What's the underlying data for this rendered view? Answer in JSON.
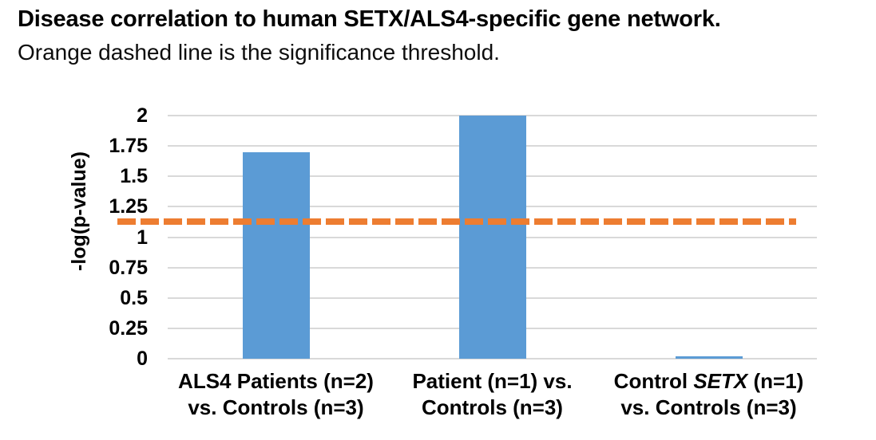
{
  "title": "Disease correlation to human SETX/ALS4-specific gene network.",
  "subtitle": "Orange dashed line is the  significance threshold.",
  "colors": {
    "bar": "#5B9BD5",
    "threshold_line": "#ED7D31",
    "gridline": "#D9D9D9",
    "text": "#000000",
    "background": "#FFFFFF"
  },
  "chart_data": {
    "type": "bar",
    "title": "Disease correlation to human SETX/ALS4-specific gene network.",
    "subtitle": "Orange dashed line is the  significance threshold.",
    "xlabel": "",
    "ylabel": "-log(p-value)",
    "ylim": [
      0,
      2
    ],
    "yticks": [
      "0",
      "0.25",
      "0.5",
      "0.75",
      "1",
      "1.25",
      "1.5",
      "1.75",
      "2"
    ],
    "grid": true,
    "legend": false,
    "categories": [
      {
        "plain_text": "ALS4 Patients (n=2) vs. Controls (n=3)",
        "lines": [
          [
            {
              "t": "ALS4 Patients (n=2)"
            }
          ],
          [
            {
              "t": "vs. Controls (n=3)"
            }
          ]
        ]
      },
      {
        "plain_text": "Patient (n=1) vs. Controls (n=3)",
        "lines": [
          [
            {
              "t": "Patient (n=1) vs."
            }
          ],
          [
            {
              "t": "Controls (n=3)"
            }
          ]
        ]
      },
      {
        "plain_text": "Control SETX (n=1) vs. Controls (n=3)",
        "lines": [
          [
            {
              "t": "Control "
            },
            {
              "t": "SETX",
              "i": true
            },
            {
              "t": " (n=1)"
            }
          ],
          [
            {
              "t": "vs. Controls (n=3)"
            }
          ]
        ]
      }
    ],
    "values": [
      1.7,
      2.0,
      0.02
    ],
    "threshold": {
      "label": "significance threshold",
      "value": 1.13,
      "style": "dashed",
      "color": "#ED7D31"
    },
    "bar_color": "#5B9BD5"
  }
}
